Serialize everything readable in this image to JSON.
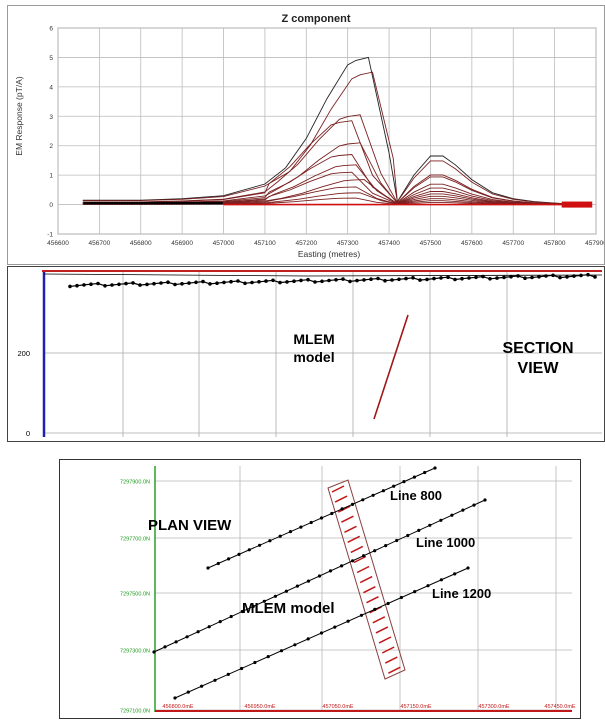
{
  "chart_data": [
    {
      "type": "line",
      "title": "Z component",
      "xlabel": "Easting (metres)",
      "ylabel": "EM Response (pT/A)",
      "xlim": [
        456600,
        457900
      ],
      "ylim": [
        -1,
        6
      ],
      "x_ticks": [
        "456600",
        "456700",
        "456800",
        "456900",
        "457000",
        "457100",
        "457200",
        "457300",
        "457400",
        "457500",
        "457600",
        "457700",
        "457800",
        "457900"
      ],
      "y_ticks": [
        "-1",
        "0",
        "1",
        "2",
        "3",
        "4",
        "5",
        "6"
      ],
      "grid": true,
      "profile_x": [
        456660,
        456700,
        456800,
        456900,
        457000,
        457100,
        457150,
        457200,
        457250,
        457300,
        457320,
        457350,
        457400,
        457420,
        457460,
        457500,
        457530,
        457560,
        457600,
        457650,
        457700,
        457750,
        457800,
        457860
      ],
      "profile_shape": [
        0.03,
        0.03,
        0.03,
        0.04,
        0.06,
        0.14,
        0.25,
        0.45,
        0.72,
        0.95,
        0.98,
        1.0,
        0.35,
        0.02,
        0.2,
        0.33,
        0.33,
        0.27,
        0.17,
        0.08,
        0.04,
        0.02,
        0.01,
        0.0
      ],
      "peak_x_per_series": [
        457340,
        457350,
        457320,
        457300,
        457320,
        457300,
        457310,
        457300,
        457330,
        457310,
        457320,
        457310
      ],
      "series": [
        {
          "peak": 5.0
        },
        {
          "peak": 4.5
        },
        {
          "peak": 3.05
        },
        {
          "peak": 2.85
        },
        {
          "peak": 2.1
        },
        {
          "peak": 1.7
        },
        {
          "peak": 1.35
        },
        {
          "peak": 1.1
        },
        {
          "peak": 0.85
        },
        {
          "peak": 0.6
        },
        {
          "peak": 0.4
        },
        {
          "peak": 0.22
        }
      ],
      "colors": {
        "line": "#7a2020",
        "baseline": "#d01010",
        "markers": "#000000"
      }
    },
    {
      "type": "scatter",
      "y_ticks": [
        "200",
        "0"
      ],
      "annotations": {
        "model_label_line1": "MLEM",
        "model_label_line2": "model",
        "view_label_line1": "SECTION",
        "view_label_line2": "VIEW"
      },
      "colors": {
        "axis": "#2020b0",
        "plate": "#a01818",
        "points": "#000000"
      }
    },
    {
      "type": "scatter",
      "y_ticks": [
        "7297900.0N",
        "7297700.0N",
        "7297500.0N",
        "7297300.0N",
        "7297100.0N"
      ],
      "x_ticks": [
        "456800.0mE",
        "456950.0mE",
        "457050.0mE",
        "457150.0mE",
        "457300.0mE",
        "457450.0mE"
      ],
      "annotations": {
        "view_label": "PLAN VIEW",
        "model_label": "MLEM model",
        "lines": [
          "Line 800",
          "Line 1000",
          "Line 1200"
        ]
      },
      "colors": {
        "y_axis": "#1a9a1a",
        "x_axis": "#c01818",
        "plate": "#c01818",
        "lines": "#000000"
      }
    }
  ]
}
